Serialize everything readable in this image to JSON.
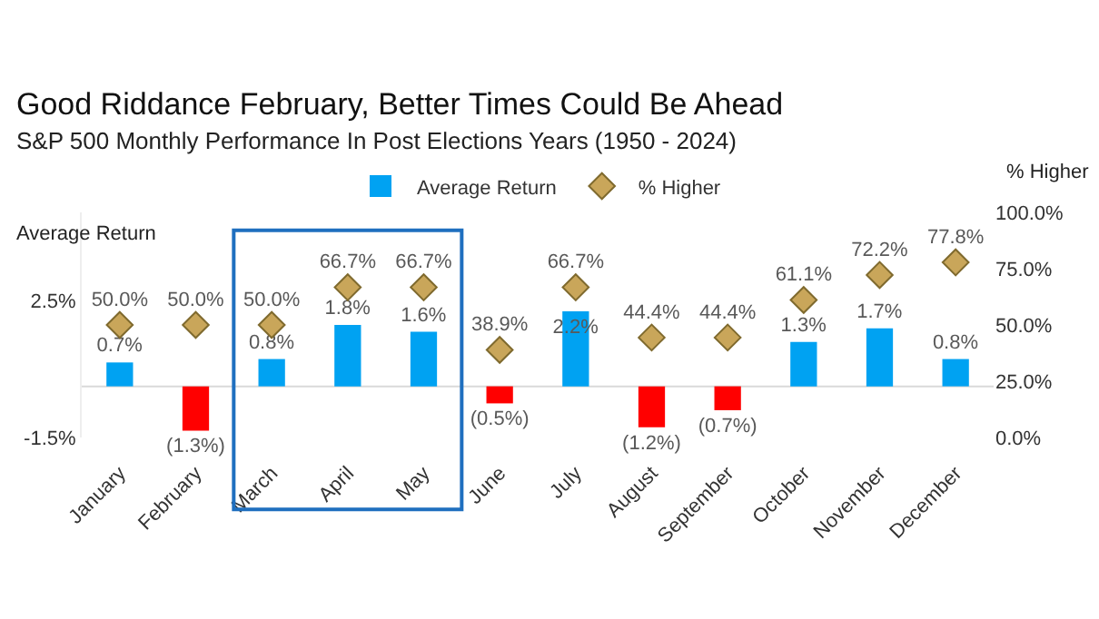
{
  "chart_data": {
    "type": "bar",
    "title": "Good Riddance February, Better Times Could Be Ahead",
    "subtitle": "S&P 500 Monthly Performance In Post Elections Years (1950 - 2024)",
    "ylabel": "Average Return",
    "y2label": "% Higher",
    "categories": [
      "January",
      "February",
      "March",
      "April",
      "May",
      "June",
      "July",
      "August",
      "September",
      "October",
      "November",
      "December"
    ],
    "series": [
      {
        "name": "Average Return",
        "colors": [
          "#00a2f2",
          "#ff0000",
          "#00a2f2",
          "#00a2f2",
          "#00a2f2",
          "#ff0000",
          "#00a2f2",
          "#ff0000",
          "#ff0000",
          "#00a2f2",
          "#00a2f2",
          "#00a2f2"
        ],
        "values": [
          0.7,
          -1.3,
          0.8,
          1.8,
          1.6,
          -0.5,
          2.2,
          -1.2,
          -0.7,
          1.3,
          1.7,
          0.8
        ],
        "value_labels": [
          "0.7%",
          "(1.3%)",
          "0.8%",
          "1.8%",
          "1.6%",
          "(0.5%)",
          "2.2%",
          "(1.2%)",
          "(0.7%)",
          "1.3%",
          "1.7%",
          "0.8%"
        ]
      },
      {
        "name": "% Higher",
        "type": "scatter",
        "axis": "y2",
        "marker": "diamond",
        "color": "#c9a65a",
        "values": [
          50.0,
          50.0,
          50.0,
          66.7,
          66.7,
          38.9,
          66.7,
          44.4,
          44.4,
          61.1,
          72.2,
          77.8
        ],
        "value_labels": [
          "50.0%",
          "50.0%",
          "50.0%",
          "66.7%",
          "66.7%",
          "38.9%",
          "66.7%",
          "44.4%",
          "44.4%",
          "61.1%",
          "72.2%",
          "77.8%"
        ]
      }
    ],
    "ylim": [
      -1.5,
      5.1
    ],
    "yticks": [
      {
        "value": 2.5,
        "label": "2.5%"
      },
      {
        "value": -1.5,
        "label": "-1.5%"
      }
    ],
    "y2lim": [
      0,
      100
    ],
    "y2ticks": [
      {
        "value": 0,
        "label": "0.0%"
      },
      {
        "value": 25,
        "label": "25.0%"
      },
      {
        "value": 50,
        "label": "50.0%"
      },
      {
        "value": 75,
        "label": "75.0%"
      },
      {
        "value": 100,
        "label": "100.0%"
      }
    ],
    "ref_lines": [
      {
        "axis": "y",
        "value": 0,
        "color": "#d9d9d9"
      }
    ],
    "grid": false,
    "legend": "top"
  }
}
